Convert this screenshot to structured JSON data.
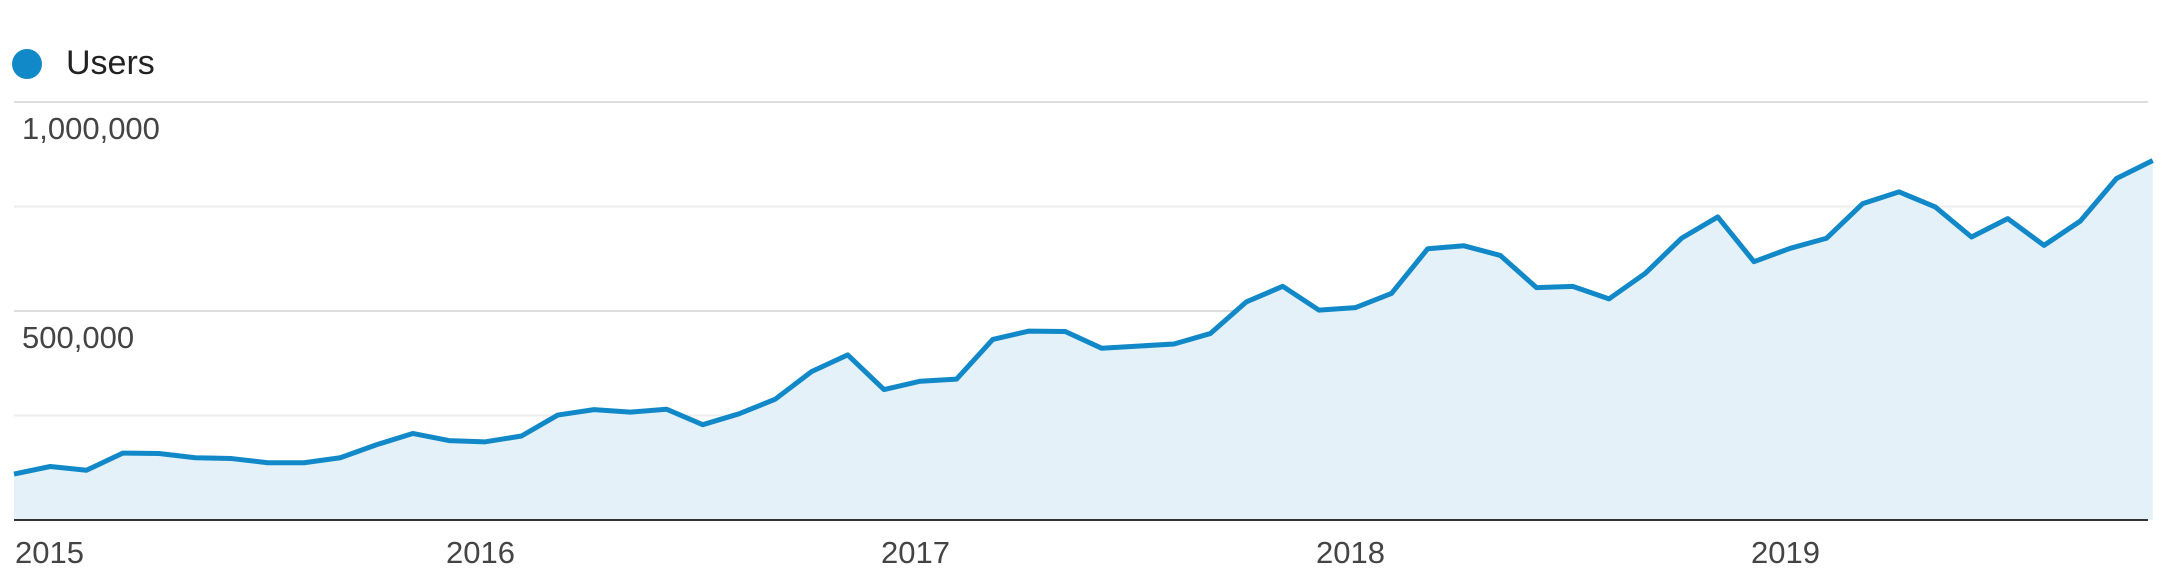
{
  "legend": {
    "label": "Users",
    "color": "#1189c8"
  },
  "chart_data": {
    "type": "area",
    "series": [
      {
        "name": "Users",
        "color": "#1189c8",
        "fill": "#e4f1f8",
        "x": [
          "2015-01",
          "2015-02",
          "2015-03",
          "2015-04",
          "2015-05",
          "2015-06",
          "2015-07",
          "2015-08",
          "2015-09",
          "2015-10",
          "2015-11",
          "2015-12",
          "2016-01",
          "2016-02",
          "2016-03",
          "2016-04",
          "2016-05",
          "2016-06",
          "2016-07",
          "2016-08",
          "2016-09",
          "2016-10",
          "2016-11",
          "2016-12",
          "2017-01",
          "2017-02",
          "2017-03",
          "2017-04",
          "2017-05",
          "2017-06",
          "2017-07",
          "2017-08",
          "2017-09",
          "2017-10",
          "2017-11",
          "2017-12",
          "2018-01",
          "2018-02",
          "2018-03",
          "2018-04",
          "2018-05",
          "2018-06",
          "2018-07",
          "2018-08",
          "2018-09",
          "2018-10",
          "2018-11",
          "2018-12",
          "2019-01",
          "2019-02",
          "2019-03",
          "2019-04",
          "2019-05",
          "2019-06",
          "2019-07",
          "2019-08",
          "2019-09",
          "2019-10",
          "2019-11",
          "2019-12"
        ],
        "values": [
          110000,
          128000,
          119000,
          160000,
          159000,
          149000,
          147000,
          137000,
          137000,
          149000,
          180000,
          207000,
          190000,
          187000,
          201000,
          251000,
          264000,
          258000,
          265000,
          228000,
          254000,
          289000,
          355000,
          395000,
          312000,
          332000,
          337000,
          432000,
          452000,
          451000,
          411000,
          416000,
          421000,
          446000,
          522000,
          559000,
          502000,
          508000,
          542000,
          649000,
          656000,
          633000,
          556000,
          559000,
          529000,
          590000,
          674000,
          725000,
          618000,
          650000,
          674000,
          757000,
          785000,
          749000,
          677000,
          721000,
          657000,
          715000,
          817000,
          860000
        ]
      }
    ],
    "yticks": [
      {
        "value": 1000000,
        "label": "1,000,000"
      },
      {
        "value": 500000,
        "label": "500,000"
      }
    ],
    "xticks": [
      {
        "index": 0,
        "label": "2015"
      },
      {
        "index": 12,
        "label": "2016"
      },
      {
        "index": 24,
        "label": "2017"
      },
      {
        "index": 36,
        "label": "2018"
      },
      {
        "index": 48,
        "label": "2019"
      }
    ],
    "ylim": [
      0,
      1000000
    ],
    "grid": true,
    "title": "",
    "xlabel": "",
    "ylabel": ""
  }
}
